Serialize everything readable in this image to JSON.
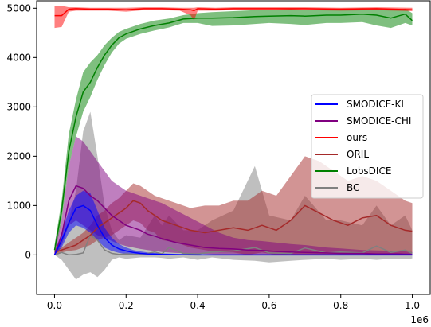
{
  "chart_data": {
    "type": "line",
    "title": "",
    "xlabel": "",
    "ylabel": "",
    "x_offset_label": "1e6",
    "xlim": [
      -0.05,
      1.05
    ],
    "ylim": [
      -800,
      5150
    ],
    "x_ticks": [
      0.0,
      0.2,
      0.4,
      0.6,
      0.8,
      1.0
    ],
    "x_tick_labels": [
      "0.0",
      "0.2",
      "0.4",
      "0.6",
      "0.8",
      "1.0"
    ],
    "y_ticks": [
      0,
      1000,
      2000,
      3000,
      4000,
      5000
    ],
    "y_tick_labels": [
      "0",
      "1000",
      "2000",
      "3000",
      "4000",
      "5000"
    ],
    "grid": false,
    "legend_position": "center-right",
    "series": [
      {
        "name": "BC",
        "color": "#808080",
        "x": [
          0.0,
          0.02,
          0.04,
          0.06,
          0.08,
          0.1,
          0.12,
          0.14,
          0.16,
          0.18,
          0.2,
          0.24,
          0.28,
          0.3,
          0.32,
          0.36,
          0.4,
          0.44,
          0.5,
          0.56,
          0.6,
          0.66,
          0.7,
          0.76,
          0.8,
          0.86,
          0.9,
          0.94,
          0.98,
          1.0
        ],
        "y": [
          0,
          50,
          0,
          10,
          40,
          400,
          300,
          100,
          30,
          10,
          20,
          5,
          60,
          20,
          150,
          30,
          20,
          60,
          80,
          150,
          40,
          30,
          140,
          40,
          60,
          40,
          180,
          50,
          100,
          30
        ],
        "lower": [
          0,
          -100,
          -300,
          -500,
          -400,
          -350,
          -450,
          -300,
          -100,
          -50,
          -80,
          -50,
          -50,
          -60,
          -80,
          -50,
          -100,
          -50,
          -100,
          -120,
          -150,
          -120,
          -100,
          -80,
          -100,
          -80,
          -100,
          -80,
          -90,
          -70
        ],
        "upper": [
          100,
          300,
          700,
          1300,
          2500,
          2900,
          2000,
          1000,
          500,
          300,
          400,
          350,
          800,
          600,
          800,
          500,
          500,
          700,
          900,
          1800,
          800,
          700,
          1200,
          700,
          700,
          600,
          1000,
          600,
          800,
          500
        ]
      },
      {
        "name": "LobsDICE",
        "color": "#008000",
        "x": [
          0.0,
          0.02,
          0.04,
          0.06,
          0.08,
          0.1,
          0.12,
          0.14,
          0.16,
          0.18,
          0.2,
          0.24,
          0.28,
          0.32,
          0.36,
          0.4,
          0.44,
          0.5,
          0.56,
          0.6,
          0.66,
          0.7,
          0.76,
          0.8,
          0.86,
          0.9,
          0.94,
          0.98,
          1.0
        ],
        "y": [
          100,
          900,
          2100,
          2800,
          3300,
          3500,
          3800,
          4050,
          4250,
          4400,
          4480,
          4580,
          4650,
          4700,
          4780,
          4800,
          4800,
          4810,
          4830,
          4840,
          4850,
          4840,
          4860,
          4860,
          4880,
          4860,
          4800,
          4880,
          4750
        ],
        "lower": [
          0,
          700,
          1800,
          2400,
          2900,
          3200,
          3550,
          3850,
          4100,
          4280,
          4380,
          4480,
          4550,
          4610,
          4700,
          4700,
          4640,
          4650,
          4680,
          4700,
          4680,
          4660,
          4700,
          4700,
          4720,
          4650,
          4600,
          4700,
          4650
        ],
        "upper": [
          200,
          1100,
          2450,
          3150,
          3700,
          3900,
          4050,
          4250,
          4400,
          4520,
          4580,
          4680,
          4750,
          4790,
          4860,
          4900,
          4920,
          4940,
          4960,
          4970,
          4980,
          4970,
          4980,
          4990,
          5000,
          4990,
          4960,
          4990,
          4900
        ]
      },
      {
        "name": "ORIL",
        "color": "#a52a2a",
        "x": [
          0.0,
          0.02,
          0.04,
          0.06,
          0.08,
          0.1,
          0.12,
          0.14,
          0.16,
          0.18,
          0.2,
          0.22,
          0.24,
          0.26,
          0.28,
          0.3,
          0.34,
          0.38,
          0.42,
          0.46,
          0.5,
          0.54,
          0.58,
          0.62,
          0.66,
          0.7,
          0.74,
          0.78,
          0.82,
          0.86,
          0.9,
          0.94,
          0.98,
          1.0
        ],
        "y": [
          50,
          100,
          150,
          200,
          300,
          400,
          550,
          650,
          750,
          850,
          950,
          1100,
          1050,
          900,
          800,
          700,
          600,
          500,
          450,
          500,
          550,
          500,
          600,
          500,
          700,
          1000,
          850,
          700,
          600,
          750,
          800,
          600,
          500,
          480
        ],
        "lower": [
          0,
          50,
          80,
          100,
          150,
          200,
          300,
          350,
          400,
          500,
          600,
          700,
          650,
          500,
          450,
          300,
          250,
          150,
          100,
          50,
          50,
          0,
          50,
          0,
          0,
          0,
          0,
          0,
          0,
          0,
          0,
          0,
          0,
          0
        ],
        "upper": [
          100,
          150,
          250,
          350,
          450,
          600,
          800,
          900,
          1050,
          1150,
          1300,
          1450,
          1400,
          1300,
          1200,
          1150,
          1050,
          950,
          1000,
          1000,
          1100,
          1100,
          1300,
          1200,
          1600,
          2000,
          1900,
          1700,
          1500,
          1600,
          1500,
          1300,
          1100,
          1050
        ]
      },
      {
        "name": "SMODICE-CHI",
        "color": "#800080",
        "x": [
          0.0,
          0.02,
          0.04,
          0.06,
          0.08,
          0.1,
          0.12,
          0.14,
          0.16,
          0.18,
          0.2,
          0.22,
          0.24,
          0.26,
          0.28,
          0.3,
          0.34,
          0.38,
          0.42,
          0.46,
          0.5,
          0.54,
          0.58,
          0.62,
          0.66,
          0.7,
          0.76,
          0.8,
          0.86,
          0.9,
          0.96,
          1.0
        ],
        "y": [
          0,
          400,
          1100,
          1400,
          1350,
          1200,
          1100,
          950,
          800,
          700,
          600,
          550,
          500,
          420,
          380,
          330,
          250,
          200,
          150,
          130,
          120,
          100,
          90,
          70,
          60,
          50,
          40,
          30,
          30,
          20,
          20,
          10
        ],
        "lower": [
          0,
          200,
          600,
          700,
          600,
          500,
          400,
          350,
          280,
          220,
          180,
          150,
          120,
          100,
          80,
          60,
          40,
          30,
          20,
          10,
          10,
          0,
          0,
          0,
          0,
          0,
          0,
          0,
          0,
          0,
          0,
          0
        ],
        "upper": [
          100,
          700,
          1800,
          2400,
          2300,
          2100,
          1900,
          1700,
          1500,
          1400,
          1300,
          1250,
          1200,
          1150,
          1100,
          1050,
          900,
          750,
          600,
          450,
          350,
          300,
          280,
          250,
          220,
          200,
          150,
          130,
          100,
          90,
          80,
          60
        ]
      },
      {
        "name": "SMODICE-KL",
        "color": "#0000ff",
        "x": [
          0.0,
          0.02,
          0.04,
          0.06,
          0.08,
          0.1,
          0.12,
          0.14,
          0.16,
          0.18,
          0.2,
          0.22,
          0.24,
          0.26,
          0.3,
          0.34,
          0.4,
          0.5,
          0.6,
          0.7,
          0.8,
          0.9,
          1.0
        ],
        "y": [
          0,
          300,
          650,
          950,
          1000,
          900,
          600,
          350,
          200,
          120,
          80,
          50,
          30,
          20,
          10,
          5,
          0,
          0,
          0,
          0,
          0,
          0,
          0
        ],
        "lower": [
          0,
          150,
          450,
          600,
          550,
          450,
          300,
          150,
          80,
          40,
          20,
          10,
          5,
          0,
          0,
          0,
          0,
          0,
          0,
          0,
          0,
          0,
          0
        ],
        "upper": [
          50,
          450,
          900,
          1200,
          1300,
          1250,
          900,
          550,
          350,
          220,
          150,
          100,
          70,
          50,
          30,
          20,
          10,
          5,
          5,
          5,
          5,
          5,
          5
        ]
      },
      {
        "name": "ours",
        "color": "#ff0000",
        "x": [
          0.0,
          0.02,
          0.04,
          0.06,
          0.1,
          0.15,
          0.2,
          0.25,
          0.3,
          0.35,
          0.38,
          0.39,
          0.4,
          0.45,
          0.5,
          0.6,
          0.7,
          0.8,
          0.9,
          1.0
        ],
        "y": [
          4850,
          4850,
          4980,
          4990,
          4980,
          4980,
          4970,
          4990,
          4990,
          4980,
          4970,
          4950,
          4990,
          4980,
          4990,
          4990,
          4990,
          4980,
          4990,
          4970
        ],
        "lower": [
          4600,
          4620,
          4930,
          4950,
          4950,
          4950,
          4930,
          4960,
          4960,
          4950,
          4860,
          4750,
          4950,
          4950,
          4960,
          4960,
          4960,
          4950,
          4960,
          4940
        ],
        "upper": [
          5050,
          5050,
          5020,
          5020,
          5010,
          5010,
          5010,
          5020,
          5020,
          5010,
          5010,
          5010,
          5020,
          5010,
          5020,
          5020,
          5020,
          5010,
          5020,
          5010
        ]
      }
    ],
    "legend": [
      {
        "name": "SMODICE-KL",
        "color": "#0000ff"
      },
      {
        "name": "SMODICE-CHI",
        "color": "#800080"
      },
      {
        "name": "ours",
        "color": "#ff0000"
      },
      {
        "name": "ORIL",
        "color": "#a52a2a"
      },
      {
        "name": "LobsDICE",
        "color": "#008000"
      },
      {
        "name": "BC",
        "color": "#808080"
      }
    ]
  }
}
